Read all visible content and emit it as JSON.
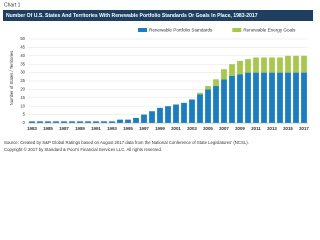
{
  "label": "Chart 1",
  "chart_data": {
    "type": "stacked_bar",
    "title": "Number Of U.S. States And Territories With Renewable Portfolio Standards Or Goals In Place, 1983-2017",
    "ylabel": "Number of States / Territories",
    "categories": [
      "1983",
      null,
      "1985",
      null,
      "1987",
      null,
      "1989",
      null,
      "1991",
      null,
      "1993",
      null,
      "1995",
      null,
      "1997",
      null,
      "1999",
      null,
      "2001",
      null,
      "2003",
      null,
      "2005",
      null,
      "2007",
      null,
      "2009",
      null,
      "2011",
      null,
      "2013",
      null,
      "2015",
      null,
      "2017"
    ],
    "series": [
      {
        "name": "Renewable Portfolio Standards",
        "color": "#1a7dbf",
        "values": [
          1,
          1,
          1,
          1,
          1,
          1,
          1,
          1,
          1,
          1,
          1,
          2,
          2,
          3,
          5,
          7,
          9,
          10,
          11,
          12,
          14,
          17,
          20,
          22,
          26,
          28,
          29,
          30,
          30,
          30,
          30,
          30,
          30,
          30,
          30
        ]
      },
      {
        "name": "Renewable Energy Goals",
        "color": "#a9c74f",
        "values": [
          0,
          0,
          0,
          0,
          0,
          0,
          0,
          0,
          0,
          0,
          0,
          0,
          0,
          0,
          0,
          0,
          0,
          0,
          0,
          0,
          0,
          1,
          2,
          4,
          6,
          7,
          8,
          8,
          9,
          9,
          9,
          9,
          10,
          10,
          10
        ]
      }
    ],
    "ylim": [
      0,
      50
    ],
    "yticks": [
      0,
      5,
      10,
      15,
      20,
      25,
      30,
      35,
      40,
      45,
      50
    ],
    "grid": true
  },
  "footnotes": [
    "Source: Created by S&P Global Ratings based on August 2017 data from the National Conference of State Legislatures' (NCSL).",
    "Copyright © 2017 by Standard & Poor's Financial Services LLC. All rights reserved."
  ]
}
